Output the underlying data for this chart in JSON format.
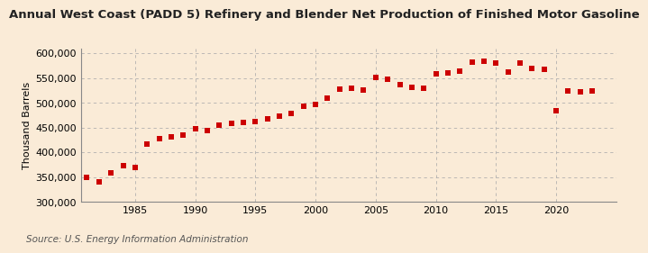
{
  "title": "Annual West Coast (PADD 5) Refinery and Blender Net Production of Finished Motor Gasoline",
  "ylabel": "Thousand Barrels",
  "source": "Source: U.S. Energy Information Administration",
  "background_color": "#faebd7",
  "marker_color": "#cc0000",
  "years": [
    1981,
    1982,
    1983,
    1984,
    1985,
    1986,
    1987,
    1988,
    1989,
    1990,
    1991,
    1992,
    1993,
    1994,
    1995,
    1996,
    1997,
    1998,
    1999,
    2000,
    2001,
    2002,
    2003,
    2004,
    2005,
    2006,
    2007,
    2008,
    2009,
    2010,
    2011,
    2012,
    2013,
    2014,
    2015,
    2016,
    2017,
    2018,
    2019,
    2020,
    2021,
    2022,
    2023
  ],
  "values": [
    350000,
    340000,
    358000,
    373000,
    370000,
    416000,
    428000,
    432000,
    435000,
    448000,
    444000,
    455000,
    458000,
    460000,
    463000,
    468000,
    473000,
    478000,
    493000,
    496000,
    510000,
    528000,
    530000,
    526000,
    551000,
    548000,
    536000,
    532000,
    530000,
    558000,
    561000,
    565000,
    583000,
    585000,
    580000,
    563000,
    581000,
    570000,
    568000,
    484000,
    525000,
    523000,
    524000
  ],
  "ylim": [
    300000,
    610000
  ],
  "yticks": [
    300000,
    350000,
    400000,
    450000,
    500000,
    550000,
    600000
  ],
  "xticks": [
    1985,
    1990,
    1995,
    2000,
    2005,
    2010,
    2015,
    2020
  ],
  "xlim": [
    1980.5,
    2025
  ],
  "title_fontsize": 9.5,
  "ylabel_fontsize": 8,
  "tick_fontsize": 8,
  "source_fontsize": 7.5,
  "marker_size": 14
}
